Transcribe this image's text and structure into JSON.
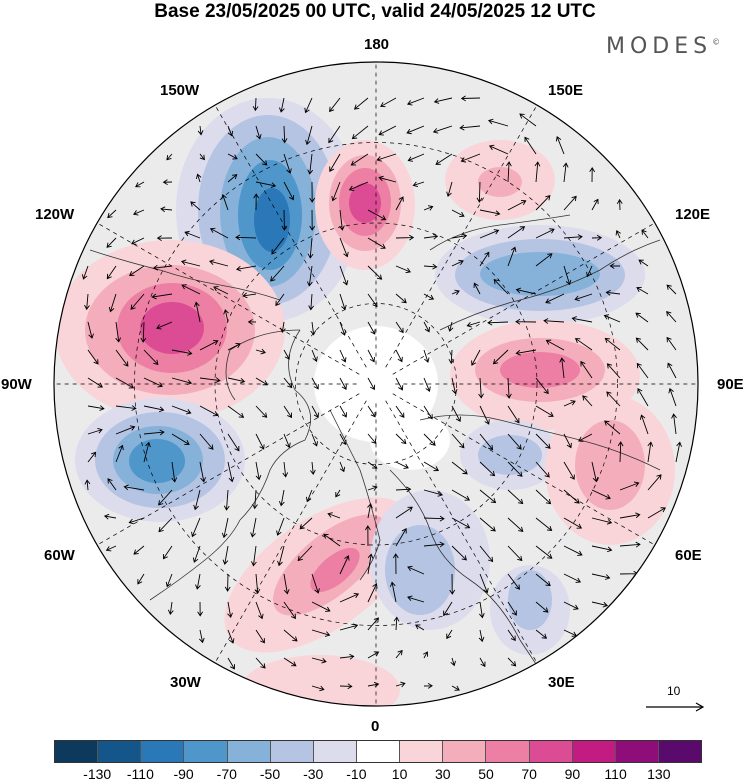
{
  "title": "Base 23/05/2025 00 UTC, valid 24/05/2025 12 UTC",
  "brand": "MODES",
  "brand_mark": "©",
  "longitude_labels": [
    "180",
    "150E",
    "120E",
    "90E",
    "60E",
    "30E",
    "0",
    "30W",
    "60W",
    "90W",
    "120W",
    "150W"
  ],
  "wind_reference": {
    "value": "10"
  },
  "colorbar": {
    "ticks": [
      "-130",
      "-110",
      "-90",
      "-70",
      "-50",
      "-30",
      "-10",
      "10",
      "30",
      "50",
      "70",
      "90",
      "110",
      "130"
    ],
    "colors": [
      "#0d3a5c",
      "#14568a",
      "#2a78b8",
      "#4f96cb",
      "#86b2da",
      "#b4c4e2",
      "#dcdced",
      "#ffffff",
      "#f9d5d9",
      "#f4aebb",
      "#ec7fa3",
      "#dc4c94",
      "#c21c82",
      "#8e0d78",
      "#5a0a6c"
    ]
  },
  "colors": {
    "land_fill": "#e6e6e6",
    "coast": "#333333",
    "grid": "#000000"
  }
}
